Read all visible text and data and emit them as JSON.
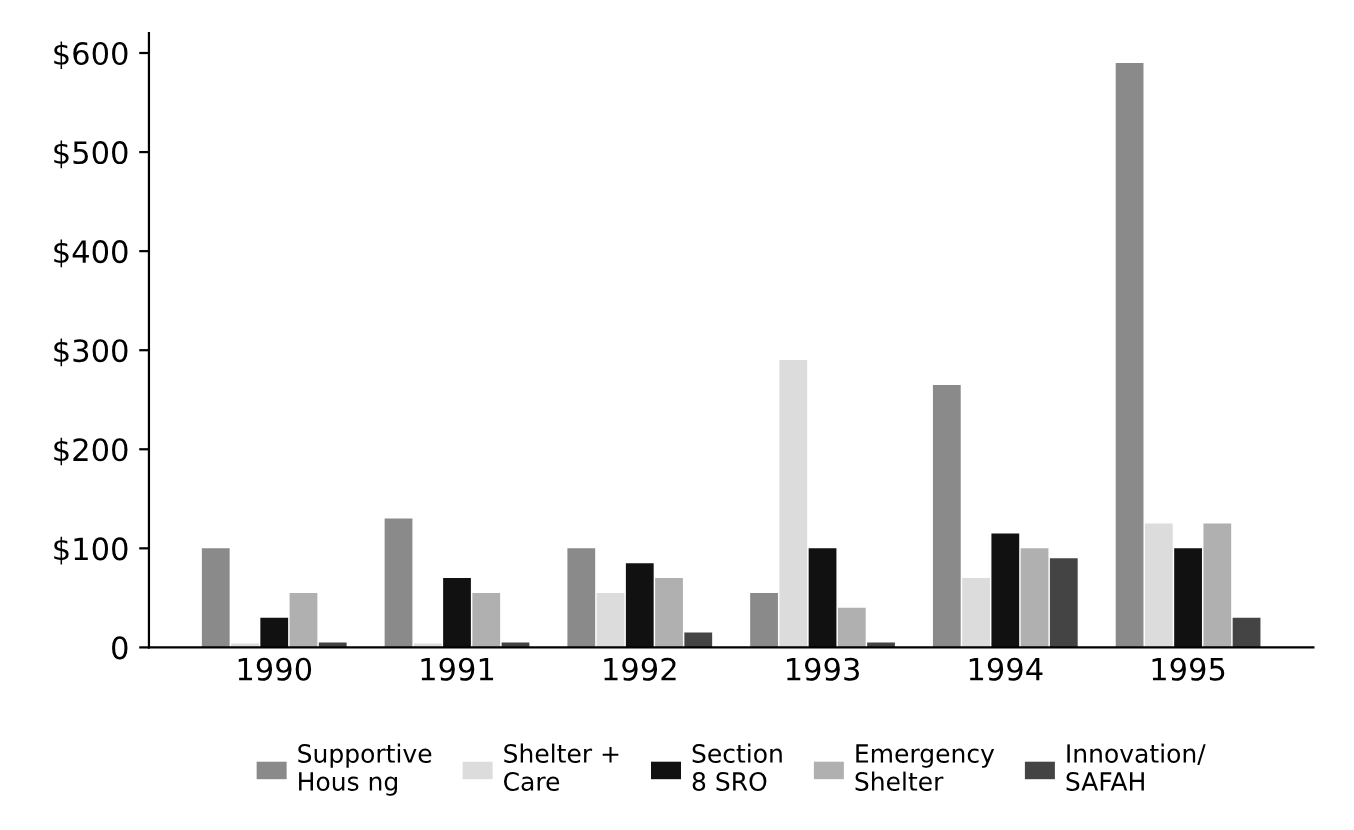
{
  "chart_data": {
    "type": "bar",
    "categories": [
      "1990",
      "1991",
      "1992",
      "1993",
      "1994",
      "1995"
    ],
    "series": [
      {
        "name": "Supportive\nHous ng",
        "color": "#8a8a8a",
        "values": [
          100,
          130,
          100,
          55,
          265,
          590
        ]
      },
      {
        "name": "Shelter +\nCare",
        "color": "#dcdcdc",
        "values": [
          4,
          4,
          55,
          290,
          70,
          125
        ]
      },
      {
        "name": "Section\n8 SRO",
        "color": "#111111",
        "values": [
          30,
          70,
          85,
          100,
          115,
          100
        ]
      },
      {
        "name": "Emergency\nShelter",
        "color": "#b0b0b0",
        "values": [
          55,
          55,
          70,
          40,
          100,
          125
        ]
      },
      {
        "name": "Innovation/\nSAFAH",
        "color": "#444444",
        "values": [
          5,
          5,
          15,
          5,
          90,
          30
        ]
      }
    ],
    "ylim": [
      0,
      620
    ],
    "yticks": [
      0,
      {
        "value": 100,
        "label": "$100"
      },
      {
        "value": 200,
        "label": "$200"
      },
      {
        "value": 300,
        "label": "$300"
      },
      {
        "value": 400,
        "label": "$400"
      },
      {
        "value": 500,
        "label": "$500"
      },
      {
        "value": 600,
        "label": "$600"
      }
    ],
    "grid": false,
    "legend": "bottom"
  }
}
